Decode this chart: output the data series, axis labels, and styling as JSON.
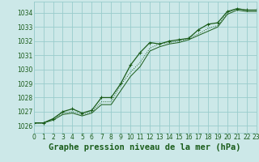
{
  "title": "Graphe pression niveau de la mer (hPa)",
  "bg_color": "#cce8e8",
  "grid_color": "#99cccc",
  "line_color": "#1a5c1a",
  "x_min": 0,
  "x_max": 23,
  "y_min": 1025.5,
  "y_max": 1034.8,
  "x_ticks": [
    0,
    1,
    2,
    3,
    4,
    5,
    6,
    7,
    8,
    9,
    10,
    11,
    12,
    13,
    14,
    15,
    16,
    17,
    18,
    19,
    20,
    21,
    22,
    23
  ],
  "y_ticks": [
    1026,
    1027,
    1028,
    1029,
    1030,
    1031,
    1032,
    1033,
    1034
  ],
  "series1": {
    "x": [
      0,
      1,
      2,
      3,
      4,
      5,
      6,
      7,
      8,
      9,
      10,
      11,
      12,
      13,
      14,
      15,
      16,
      17,
      18,
      19,
      20,
      21,
      22,
      23
    ],
    "y": [
      1026.2,
      1026.2,
      1026.5,
      1027.0,
      1027.2,
      1026.9,
      1027.1,
      1028.0,
      1028.0,
      1029.0,
      1030.3,
      1031.2,
      1031.9,
      1031.8,
      1032.0,
      1032.1,
      1032.2,
      1032.8,
      1033.2,
      1033.3,
      1034.1,
      1034.3,
      1034.2,
      1034.2
    ]
  },
  "series2": {
    "x": [
      0,
      1,
      2,
      3,
      4,
      5,
      6,
      7,
      8,
      9,
      10,
      11,
      12,
      13,
      14,
      15,
      16,
      17,
      18,
      19,
      20,
      21,
      22,
      23
    ],
    "y": [
      1026.2,
      1026.2,
      1026.5,
      1026.9,
      1027.0,
      1026.8,
      1027.0,
      1027.7,
      1027.7,
      1028.9,
      1029.8,
      1030.5,
      1031.5,
      1031.8,
      1031.9,
      1032.0,
      1032.2,
      1032.5,
      1032.9,
      1033.1,
      1034.0,
      1034.3,
      1034.2,
      1034.2
    ]
  },
  "series3": {
    "x": [
      0,
      1,
      2,
      3,
      4,
      5,
      6,
      7,
      8,
      9,
      10,
      11,
      12,
      13,
      14,
      15,
      16,
      17,
      18,
      19,
      20,
      21,
      22,
      23
    ],
    "y": [
      1026.2,
      1026.2,
      1026.4,
      1026.8,
      1026.9,
      1026.7,
      1026.9,
      1027.5,
      1027.5,
      1028.5,
      1029.5,
      1030.2,
      1031.3,
      1031.6,
      1031.8,
      1031.9,
      1032.1,
      1032.4,
      1032.7,
      1033.0,
      1033.9,
      1034.2,
      1034.1,
      1034.1
    ]
  },
  "tick_fontsize": 5.5,
  "xlabel_fontsize": 7.5,
  "lw1": 0.9,
  "lw2": 0.7,
  "lw3": 0.7
}
